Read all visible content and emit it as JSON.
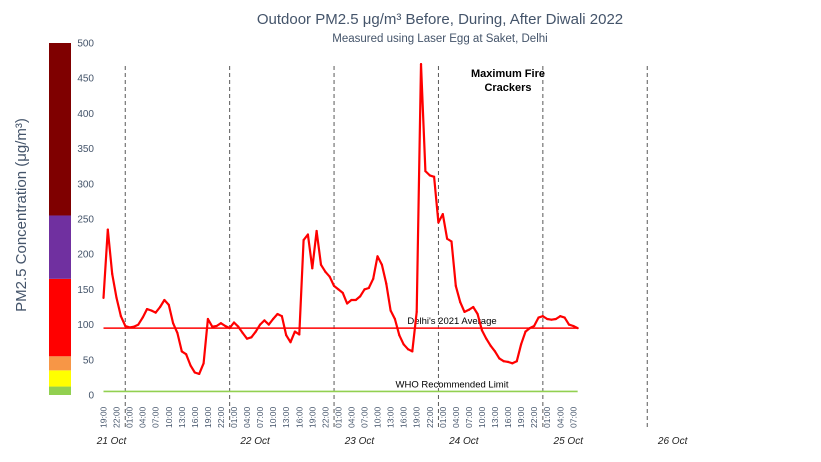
{
  "chart_data": {
    "type": "line",
    "title": "Outdoor PM2.5 μg/m³ Before, During, After Diwali 2022",
    "subtitle": "Measured using Laser Egg at Saket, Delhi",
    "ylabel": "PM2.5 Concentration (μg/m³)",
    "xlabel": "",
    "ylim": [
      0,
      500
    ],
    "yticks": [
      0,
      50,
      100,
      150,
      200,
      250,
      300,
      350,
      400,
      450,
      500
    ],
    "x_tick_labels": [
      "19:00",
      "22:00",
      "01:00",
      "04:00",
      "07:00",
      "10:00",
      "13:00",
      "16:00",
      "19:00",
      "22:00",
      "01:00",
      "04:00",
      "07:00",
      "10:00",
      "13:00",
      "16:00",
      "19:00",
      "22:00",
      "01:00",
      "04:00",
      "07:00",
      "10:00",
      "13:00",
      "16:00",
      "19:00",
      "22:00",
      "01:00",
      "04:00",
      "07:00",
      "10:00",
      "13:00",
      "16:00",
      "19:00",
      "22:00",
      "01:00",
      "04:00",
      "07:00"
    ],
    "day_labels": [
      {
        "label": "21 Oct",
        "hour": 0
      },
      {
        "label": "22 Oct",
        "hour": 33
      },
      {
        "label": "23 Oct",
        "hour": 57
      },
      {
        "label": "24 Oct",
        "hour": 81
      },
      {
        "label": "25 Oct",
        "hour": 105
      },
      {
        "label": "26 Oct",
        "hour": 129
      }
    ],
    "midnight_lines_hours": [
      5,
      29,
      53,
      77,
      101,
      125
    ],
    "x_start": "21 Oct 19:00",
    "x_step_hours": 1,
    "series": [
      {
        "color": "#ff0000",
        "values": [
          138,
          235,
          172,
          138,
          112,
          98,
          96,
          97,
          100,
          110,
          122,
          120,
          117,
          125,
          135,
          128,
          102,
          88,
          62,
          58,
          42,
          32,
          30,
          45,
          108,
          97,
          98,
          102,
          98,
          95,
          103,
          97,
          88,
          80,
          82,
          90,
          100,
          106,
          100,
          108,
          115,
          112,
          85,
          75,
          90,
          86,
          220,
          228,
          180,
          233,
          185,
          175,
          168,
          155,
          150,
          145,
          130,
          135,
          135,
          140,
          150,
          152,
          165,
          197,
          185,
          158,
          120,
          108,
          85,
          72,
          65,
          62,
          118,
          470,
          318,
          312,
          310,
          245,
          257,
          222,
          218,
          155,
          132,
          118,
          121,
          125,
          115,
          92,
          80,
          70,
          62,
          52,
          48,
          47,
          45,
          48,
          72,
          90,
          95,
          98,
          110,
          112,
          108,
          107,
          108,
          112,
          110,
          100,
          98,
          95
        ]
      }
    ],
    "reference_lines": [
      {
        "label": "Delhi's 2021 Average",
        "value": 95,
        "color": "#ff0000"
      },
      {
        "label": "WHO Recommended Limit",
        "value": 5,
        "color": "#92d050"
      }
    ],
    "annotations": [
      {
        "lines": [
          "Maximum Fire",
          "Crackers"
        ],
        "hour": 62
      }
    ],
    "color_bands": [
      {
        "from": 0,
        "to": 12,
        "color": "#92d050"
      },
      {
        "from": 12,
        "to": 35,
        "color": "#ffff00"
      },
      {
        "from": 35,
        "to": 55,
        "color": "#f79646"
      },
      {
        "from": 55,
        "to": 165,
        "color": "#ff0000"
      },
      {
        "from": 165,
        "to": 255,
        "color": "#7030a0"
      },
      {
        "from": 255,
        "to": 500,
        "color": "#7f0000"
      }
    ],
    "grid": false,
    "axis_color": "#44546a",
    "gridline_color": "#595959"
  }
}
